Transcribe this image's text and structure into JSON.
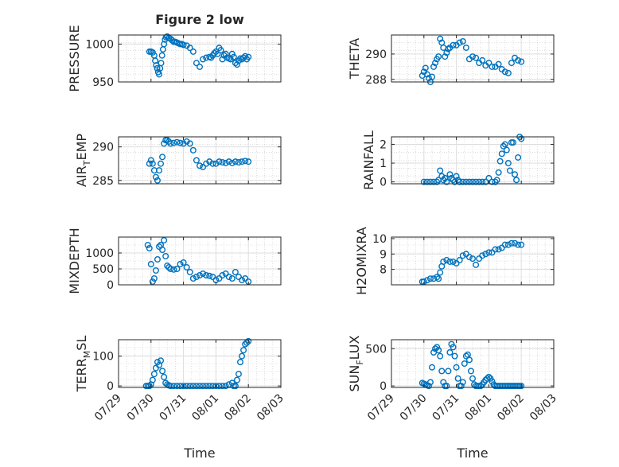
{
  "figure": {
    "title": "Figure 2 low",
    "xlabel": "Time",
    "colors": {
      "marker": "#0072BD",
      "axis": "#262626",
      "grid": "#c8c8c8",
      "background": "#ffffff"
    }
  },
  "chart_data": [
    {
      "type": "scatter",
      "ylabel": "PRESSURE",
      "xlim": [
        "07/29",
        "08/03"
      ],
      "ylim": [
        950,
        1012
      ],
      "yticks": [
        950,
        1000
      ],
      "xticks": [
        "07/29",
        "07/30",
        "07/31",
        "08/01",
        "08/02",
        "08/03"
      ],
      "show_xticklabels": false,
      "marker": "open-circle",
      "grid": true,
      "x_days": [
        0.95,
        1.0,
        1.05,
        1.1,
        1.13,
        1.16,
        1.19,
        1.22,
        1.25,
        1.28,
        1.31,
        1.34,
        1.37,
        1.4,
        1.43,
        1.46,
        1.5,
        1.55,
        1.6,
        1.65,
        1.7,
        1.75,
        1.8,
        1.85,
        1.9,
        1.95,
        2.0,
        2.1,
        2.2,
        2.3,
        2.4,
        2.5,
        2.6,
        2.7,
        2.8,
        2.85,
        2.9,
        2.95,
        3.0,
        3.05,
        3.1,
        3.15,
        3.2,
        3.25,
        3.3,
        3.35,
        3.4,
        3.45,
        3.5,
        3.55,
        3.6,
        3.65,
        3.7,
        3.75,
        3.8,
        3.85,
        3.9,
        3.95,
        4.0
      ],
      "y": [
        990,
        990,
        989,
        985,
        978,
        972,
        968,
        963,
        960,
        968,
        975,
        985,
        993,
        1000,
        1006,
        1009,
        1010,
        1008,
        1007,
        1005,
        1003,
        1003,
        1002,
        1001,
        1000,
        1000,
        999,
        998,
        995,
        990,
        975,
        970,
        980,
        982,
        983,
        982,
        985,
        988,
        990,
        987,
        995,
        992,
        980,
        985,
        987,
        982,
        981,
        980,
        987,
        983,
        975,
        973,
        978,
        981,
        980,
        982,
        984,
        980,
        983
      ]
    },
    {
      "type": "scatter",
      "ylabel": "THETA",
      "xlim": [
        "07/29",
        "08/03"
      ],
      "ylim": [
        287.8,
        291.5
      ],
      "yticks": [
        288,
        290
      ],
      "xticks": [
        "07/29",
        "07/30",
        "07/31",
        "08/01",
        "08/02",
        "08/03"
      ],
      "show_xticklabels": false,
      "marker": "open-circle",
      "grid": true,
      "x_days": [
        0.95,
        1.0,
        1.05,
        1.1,
        1.15,
        1.2,
        1.25,
        1.3,
        1.35,
        1.4,
        1.45,
        1.5,
        1.55,
        1.6,
        1.65,
        1.7,
        1.75,
        1.8,
        1.9,
        2.0,
        2.1,
        2.2,
        2.3,
        2.4,
        2.5,
        2.6,
        2.7,
        2.8,
        2.9,
        3.0,
        3.1,
        3.2,
        3.3,
        3.4,
        3.5,
        3.6,
        3.7,
        3.8,
        3.9,
        4.0
      ],
      "y": [
        288.3,
        288.6,
        288.9,
        288.4,
        288.1,
        287.8,
        288.2,
        289.0,
        289.3,
        289.6,
        289.8,
        291.2,
        290.9,
        290.5,
        289.8,
        290.1,
        290.4,
        290.5,
        290.7,
        290.7,
        290.9,
        291.0,
        290.5,
        289.6,
        289.8,
        289.7,
        289.3,
        289.5,
        289.1,
        289.3,
        289.0,
        289.0,
        289.2,
        288.8,
        288.6,
        288.5,
        289.3,
        289.7,
        289.5,
        289.4
      ]
    },
    {
      "type": "scatter",
      "ylabel": "AIR_TEMP",
      "xlim": [
        "07/29",
        "08/03"
      ],
      "ylim": [
        284.5,
        291.5
      ],
      "yticks": [
        285,
        290
      ],
      "xticks": [
        "07/29",
        "07/30",
        "07/31",
        "08/01",
        "08/02",
        "08/03"
      ],
      "show_xticklabels": false,
      "marker": "open-circle",
      "grid": true,
      "x_days": [
        0.95,
        1.0,
        1.05,
        1.1,
        1.15,
        1.2,
        1.25,
        1.3,
        1.35,
        1.4,
        1.45,
        1.5,
        1.55,
        1.6,
        1.7,
        1.8,
        1.9,
        2.0,
        2.1,
        2.2,
        2.3,
        2.4,
        2.5,
        2.6,
        2.7,
        2.8,
        2.9,
        3.0,
        3.1,
        3.2,
        3.3,
        3.4,
        3.5,
        3.6,
        3.7,
        3.8,
        3.9,
        4.0
      ],
      "y": [
        287.5,
        288.0,
        287.5,
        286.5,
        285.5,
        285.0,
        286.5,
        287.5,
        288.5,
        290.5,
        291.0,
        291.0,
        290.8,
        290.5,
        290.6,
        290.7,
        290.6,
        290.5,
        290.8,
        290.5,
        289.5,
        288.0,
        287.2,
        287.0,
        287.5,
        287.8,
        287.5,
        287.5,
        287.8,
        287.7,
        287.6,
        287.8,
        287.6,
        287.8,
        287.7,
        287.8,
        287.9,
        287.8
      ]
    },
    {
      "type": "scatter",
      "ylabel": "RAINFALL",
      "xlim": [
        "07/29",
        "08/03"
      ],
      "ylim": [
        -0.1,
        2.4
      ],
      "yticks": [
        0,
        1,
        2
      ],
      "xticks": [
        "07/29",
        "07/30",
        "07/31",
        "08/01",
        "08/02",
        "08/03"
      ],
      "show_xticklabels": false,
      "marker": "open-circle",
      "grid": true,
      "x_days": [
        1.0,
        1.1,
        1.2,
        1.3,
        1.4,
        1.45,
        1.5,
        1.55,
        1.6,
        1.65,
        1.7,
        1.8,
        1.85,
        1.9,
        1.95,
        2.0,
        2.05,
        2.1,
        2.2,
        2.3,
        2.4,
        2.5,
        2.6,
        2.7,
        2.8,
        2.9,
        3.0,
        3.1,
        3.2,
        3.25,
        3.3,
        3.35,
        3.4,
        3.45,
        3.5,
        3.55,
        3.6,
        3.65,
        3.7,
        3.75,
        3.8,
        3.85,
        3.9,
        3.95,
        4.0
      ],
      "y": [
        0,
        0,
        0,
        0,
        0,
        0.1,
        0.6,
        0.3,
        0.1,
        0.2,
        0,
        0.4,
        0.2,
        0.1,
        0,
        0.3,
        0.1,
        0,
        0,
        0,
        0,
        0,
        0,
        0,
        0,
        0,
        0.2,
        0,
        0,
        0.1,
        0.5,
        1.1,
        1.5,
        1.9,
        2.0,
        1.7,
        1.0,
        0.6,
        2.1,
        2.1,
        0.4,
        0.1,
        1.3,
        2.4,
        2.3
      ]
    },
    {
      "type": "scatter",
      "ylabel": "MIXDEPTH",
      "xlim": [
        "07/29",
        "08/03"
      ],
      "ylim": [
        0,
        1500
      ],
      "yticks": [
        0,
        500,
        1000
      ],
      "xticks": [
        "07/29",
        "07/30",
        "07/31",
        "08/01",
        "08/02",
        "08/03"
      ],
      "show_xticklabels": false,
      "marker": "open-circle",
      "grid": true,
      "x_days": [
        0.9,
        0.95,
        1.0,
        1.05,
        1.1,
        1.15,
        1.2,
        1.25,
        1.3,
        1.35,
        1.4,
        1.45,
        1.5,
        1.55,
        1.6,
        1.7,
        1.8,
        1.9,
        2.0,
        2.1,
        2.2,
        2.3,
        2.4,
        2.5,
        2.6,
        2.7,
        2.8,
        2.9,
        3.0,
        3.1,
        3.2,
        3.3,
        3.4,
        3.5,
        3.6,
        3.7,
        3.8,
        3.9,
        4.0
      ],
      "y": [
        1250,
        1150,
        650,
        100,
        200,
        450,
        800,
        1200,
        1250,
        1100,
        1400,
        900,
        600,
        550,
        500,
        480,
        500,
        650,
        700,
        550,
        400,
        200,
        250,
        300,
        350,
        300,
        280,
        250,
        150,
        200,
        300,
        350,
        250,
        200,
        400,
        250,
        150,
        200,
        100
      ]
    },
    {
      "type": "scatter",
      "ylabel": "H2OMIXRA",
      "xlim": [
        "07/29",
        "08/03"
      ],
      "ylim": [
        7.0,
        10.1
      ],
      "yticks": [
        8,
        9,
        10
      ],
      "xticks": [
        "07/29",
        "07/30",
        "07/31",
        "08/01",
        "08/02",
        "08/03"
      ],
      "show_xticklabels": false,
      "marker": "open-circle",
      "grid": true,
      "x_days": [
        0.95,
        1.0,
        1.1,
        1.2,
        1.3,
        1.4,
        1.45,
        1.5,
        1.55,
        1.6,
        1.7,
        1.8,
        1.9,
        2.0,
        2.1,
        2.2,
        2.3,
        2.4,
        2.5,
        2.6,
        2.7,
        2.8,
        2.9,
        3.0,
        3.1,
        3.2,
        3.3,
        3.4,
        3.5,
        3.6,
        3.7,
        3.8,
        3.9,
        4.0
      ],
      "y": [
        7.2,
        7.2,
        7.3,
        7.4,
        7.4,
        7.5,
        7.4,
        7.8,
        8.2,
        8.5,
        8.6,
        8.5,
        8.5,
        8.4,
        8.6,
        8.9,
        9.0,
        8.8,
        8.7,
        8.3,
        8.7,
        8.9,
        9.0,
        9.1,
        9.1,
        9.3,
        9.3,
        9.4,
        9.6,
        9.6,
        9.7,
        9.7,
        9.6,
        9.6
      ]
    },
    {
      "type": "scatter",
      "ylabel": "TERR_MSL",
      "xlim": [
        "07/29",
        "08/03"
      ],
      "ylim": [
        -5,
        155
      ],
      "yticks": [
        0,
        100
      ],
      "xticks": [
        "07/29",
        "07/30",
        "07/31",
        "08/01",
        "08/02",
        "08/03"
      ],
      "show_xticklabels": true,
      "marker": "open-circle",
      "grid": true,
      "x_days": [
        0.85,
        0.9,
        0.95,
        1.0,
        1.05,
        1.1,
        1.15,
        1.2,
        1.25,
        1.3,
        1.35,
        1.4,
        1.45,
        1.5,
        1.55,
        1.6,
        1.7,
        1.8,
        1.9,
        2.0,
        2.1,
        2.2,
        2.3,
        2.4,
        2.5,
        2.6,
        2.7,
        2.8,
        2.9,
        3.0,
        3.1,
        3.2,
        3.3,
        3.4,
        3.5,
        3.55,
        3.6,
        3.65,
        3.7,
        3.75,
        3.8,
        3.85,
        3.9,
        3.95,
        4.0
      ],
      "y": [
        0,
        0,
        0,
        5,
        20,
        40,
        60,
        80,
        70,
        85,
        50,
        30,
        10,
        5,
        2,
        0,
        0,
        0,
        0,
        0,
        0,
        0,
        0,
        0,
        0,
        0,
        0,
        0,
        0,
        0,
        0,
        0,
        0,
        5,
        10,
        0,
        0,
        20,
        40,
        80,
        100,
        120,
        140,
        145,
        150
      ]
    },
    {
      "type": "scatter",
      "ylabel": "SUN_FLUX",
      "xlim": [
        "07/29",
        "08/03"
      ],
      "ylim": [
        -20,
        620
      ],
      "yticks": [
        0,
        500
      ],
      "xticks": [
        "07/29",
        "07/30",
        "07/31",
        "08/01",
        "08/02",
        "08/03"
      ],
      "show_xticklabels": true,
      "marker": "open-circle",
      "grid": true,
      "x_days": [
        0.95,
        1.0,
        1.05,
        1.1,
        1.15,
        1.2,
        1.25,
        1.3,
        1.35,
        1.4,
        1.45,
        1.5,
        1.55,
        1.6,
        1.65,
        1.7,
        1.75,
        1.8,
        1.85,
        1.9,
        1.95,
        2.0,
        2.05,
        2.1,
        2.15,
        2.2,
        2.25,
        2.3,
        2.35,
        2.4,
        2.45,
        2.5,
        2.55,
        2.6,
        2.65,
        2.7,
        2.75,
        2.8,
        2.85,
        2.9,
        2.95,
        3.0,
        3.05,
        3.1,
        3.15,
        3.2,
        3.25,
        3.3,
        3.35,
        3.4,
        3.45,
        3.5,
        3.55,
        3.6,
        3.65,
        3.7,
        3.75,
        3.8,
        3.85,
        3.9,
        3.95,
        4.0
      ],
      "y": [
        40,
        30,
        20,
        10,
        0,
        50,
        250,
        450,
        500,
        520,
        480,
        400,
        200,
        50,
        0,
        0,
        200,
        450,
        560,
        520,
        400,
        250,
        100,
        0,
        0,
        50,
        300,
        400,
        420,
        350,
        200,
        100,
        20,
        0,
        0,
        0,
        0,
        20,
        50,
        80,
        100,
        120,
        100,
        60,
        20,
        0,
        0,
        0,
        0,
        0,
        0,
        0,
        0,
        0,
        0,
        0,
        0,
        0,
        0,
        0,
        0,
        0
      ]
    }
  ]
}
